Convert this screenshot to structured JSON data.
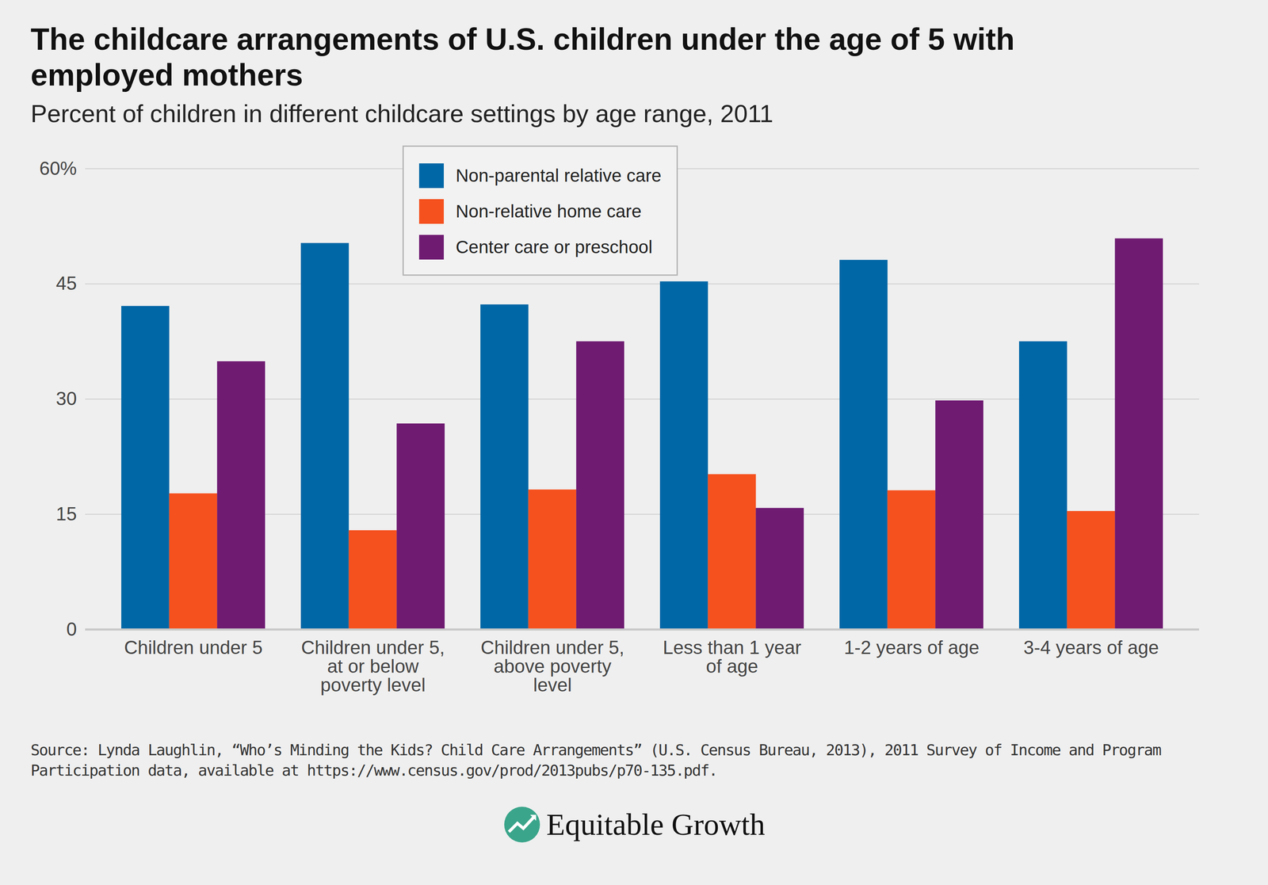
{
  "chart_data": {
    "type": "bar",
    "title": "The childcare arrangements of U.S. children under the age of 5 with employed mothers",
    "subtitle": "Percent of children in different childcare settings by age range, 2011",
    "categories": [
      "Children under 5",
      "Children under 5, at or below poverty level",
      "Children under 5, above poverty level",
      "Less than 1 year of age",
      "1-2 years of age",
      "3-4 years of age"
    ],
    "series": [
      {
        "name": "Non-parental relative care",
        "color": "#0067a6",
        "values": [
          42.1,
          50.3,
          42.3,
          45.3,
          48.1,
          37.5
        ]
      },
      {
        "name": "Non-relative home care",
        "color": "#f5511f",
        "values": [
          17.7,
          12.9,
          18.2,
          20.2,
          18.1,
          15.4
        ]
      },
      {
        "name": "Center care or preschool",
        "color": "#6f1b72",
        "values": [
          34.9,
          26.8,
          37.5,
          15.8,
          29.8,
          50.9
        ]
      }
    ],
    "ylim": [
      0,
      60
    ],
    "yticks": [
      0,
      15,
      30,
      45,
      {
        "value": 60,
        "label": "60%"
      }
    ],
    "grid": true,
    "legend": "top",
    "data_labels": false,
    "source": "Source: Lynda Laughlin, “Who’s Minding the Kids? Child Care Arrangements” (U.S. Census Bureau, 2013), 2011 Survey of Income and Program Participation data, available at https://www.census.gov/prod/2013pubs/p70-135.pdf.",
    "brand": "Equitable Growth"
  }
}
